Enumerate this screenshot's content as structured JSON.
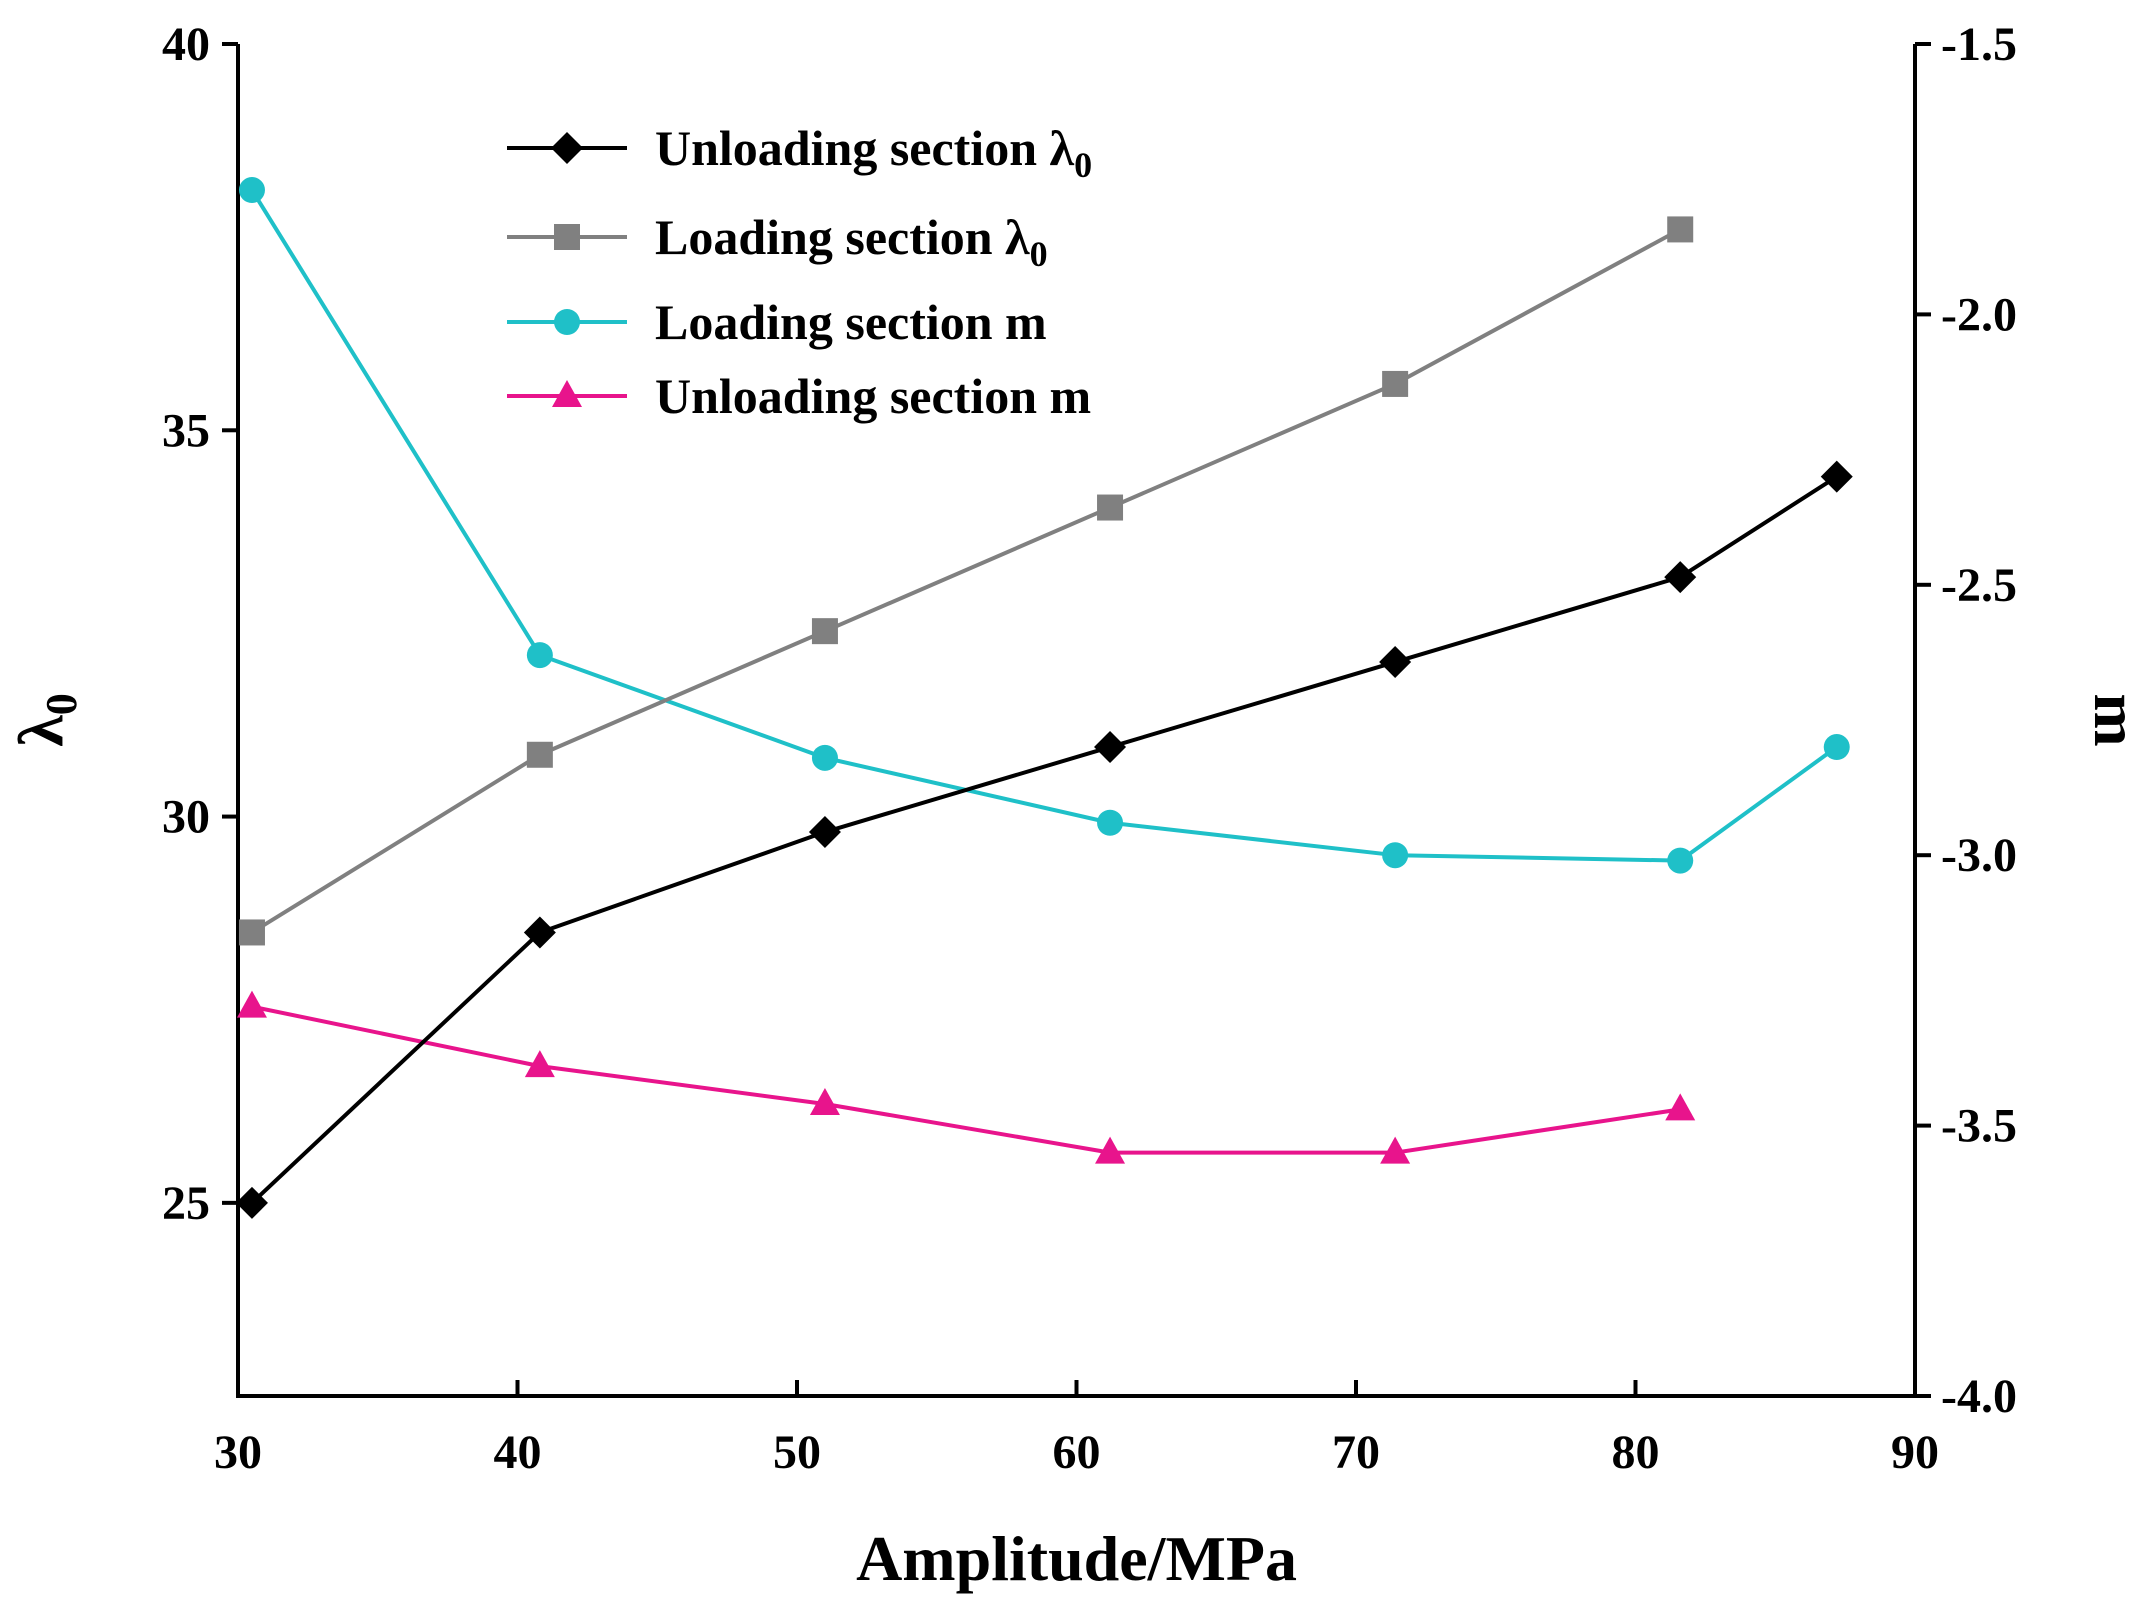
{
  "chart_data": {
    "type": "line",
    "title": "",
    "xlabel": "Amplitude/MPa",
    "ylabel": "λ0",
    "y2label": "m",
    "xlim": [
      30,
      90
    ],
    "ylim": [
      22.5,
      40
    ],
    "y2lim": [
      -4.0,
      -1.5
    ],
    "x_ticks": [
      30,
      40,
      50,
      60,
      70,
      80,
      90
    ],
    "y_ticks": [
      25,
      30,
      35,
      40
    ],
    "y2_ticks": [
      -4.0,
      -3.5,
      -3.0,
      -2.5,
      -2.0,
      -1.5
    ],
    "x_tick_labels": [
      "30",
      "40",
      "50",
      "60",
      "70",
      "80",
      "90"
    ],
    "y_tick_labels": [
      "25",
      "30",
      "35",
      "40"
    ],
    "y2_tick_labels": [
      "-4.0",
      "-3.5",
      "-3.0",
      "-2.5",
      "-2.0",
      "-1.5"
    ],
    "legend_position": "top-center",
    "grid": false,
    "series": [
      {
        "name": "Unloading section λ0",
        "legend_main": "Unloading section λ",
        "legend_sub": "0",
        "axis": "left",
        "color": "#000000",
        "marker": "diamond",
        "x": [
          30.5,
          40.8,
          51.0,
          61.2,
          71.4,
          81.6,
          87.2
        ],
        "y": [
          25.0,
          28.5,
          29.8,
          30.9,
          32.0,
          33.1,
          34.4
        ]
      },
      {
        "name": "Loading section λ0",
        "legend_main": "Loading section λ",
        "legend_sub": "0",
        "axis": "left",
        "color": "#808080",
        "marker": "square",
        "x": [
          30.5,
          40.8,
          51.0,
          61.2,
          71.4,
          81.6
        ],
        "y": [
          28.5,
          30.8,
          32.4,
          34.0,
          35.6,
          37.6
        ]
      },
      {
        "name": "Loading section m",
        "legend_main": "Loading section m",
        "legend_sub": "",
        "axis": "right",
        "color": "#1FC0C8",
        "marker": "circle",
        "x": [
          30.5,
          40.8,
          51.0,
          61.2,
          71.4,
          81.6,
          87.2
        ],
        "y": [
          -1.77,
          -2.63,
          -2.82,
          -2.94,
          -3.0,
          -3.01,
          -2.8
        ]
      },
      {
        "name": "Unloading section m",
        "legend_main": "Unloading section m",
        "legend_sub": "",
        "axis": "right",
        "color": "#E8148C",
        "marker": "triangle",
        "x": [
          30.5,
          40.8,
          51.0,
          61.2,
          71.4,
          81.6
        ],
        "y": [
          -3.28,
          -3.39,
          -3.46,
          -3.55,
          -3.55,
          -3.47
        ]
      }
    ]
  }
}
